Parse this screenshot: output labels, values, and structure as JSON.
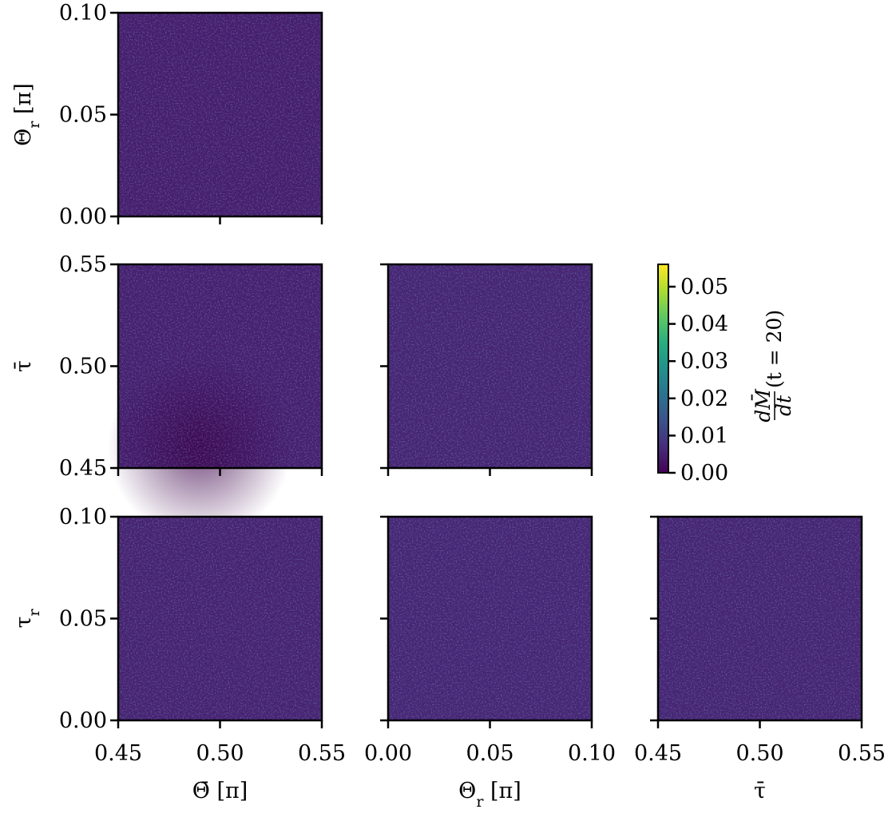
{
  "chart_data": {
    "type": "heatmap",
    "layout": "corner-plot",
    "variables": [
      {
        "key": "theta_bar",
        "label": "Θ̄ [π]",
        "range": [
          0.45,
          0.55
        ],
        "ticks": [
          "0.45",
          "0.50",
          "0.55"
        ]
      },
      {
        "key": "theta_r",
        "label": "Θr [π]",
        "range": [
          0.0,
          0.1
        ],
        "ticks": [
          "0.00",
          "0.05",
          "0.10"
        ]
      },
      {
        "key": "tau_bar",
        "label": "τ̄",
        "range": [
          0.45,
          0.55
        ],
        "ticks": [
          "0.45",
          "0.50",
          "0.55"
        ]
      },
      {
        "key": "tau_r",
        "label": "τr",
        "range": [
          0.0,
          0.1
        ],
        "ticks": [
          "0.00",
          "0.05",
          "0.10"
        ]
      }
    ],
    "panels": [
      {
        "row": 0,
        "col": 0,
        "x": "theta_bar",
        "y": "theta_r",
        "mean_value": 0.0045,
        "dark_center": null
      },
      {
        "row": 1,
        "col": 0,
        "x": "theta_bar",
        "y": "tau_bar",
        "mean_value": 0.0048,
        "dark_center": [
          0.49,
          0.46
        ]
      },
      {
        "row": 1,
        "col": 1,
        "x": "theta_r",
        "y": "tau_bar",
        "mean_value": 0.0055,
        "dark_center": null
      },
      {
        "row": 2,
        "col": 0,
        "x": "theta_bar",
        "y": "tau_r",
        "mean_value": 0.0052,
        "dark_center": null
      },
      {
        "row": 2,
        "col": 1,
        "x": "theta_r",
        "y": "tau_r",
        "mean_value": 0.0058,
        "dark_center": null
      },
      {
        "row": 2,
        "col": 2,
        "x": "tau_bar",
        "y": "tau_r",
        "mean_value": 0.0056,
        "dark_center": null
      }
    ],
    "colorbar": {
      "label": "dM̄/dt(t = 20)",
      "label_num": "dM̄",
      "label_den": "dt",
      "label_tail": "(t = 20)",
      "range": [
        0.0,
        0.056
      ],
      "ticks": [
        "0.00",
        "0.01",
        "0.02",
        "0.03",
        "0.04",
        "0.05"
      ],
      "colormap": "viridis",
      "colors": [
        "#440154",
        "#472d7b",
        "#3b528b",
        "#2c728e",
        "#21918c",
        "#28ae80",
        "#5ec962",
        "#addc30",
        "#fde725"
      ]
    }
  }
}
